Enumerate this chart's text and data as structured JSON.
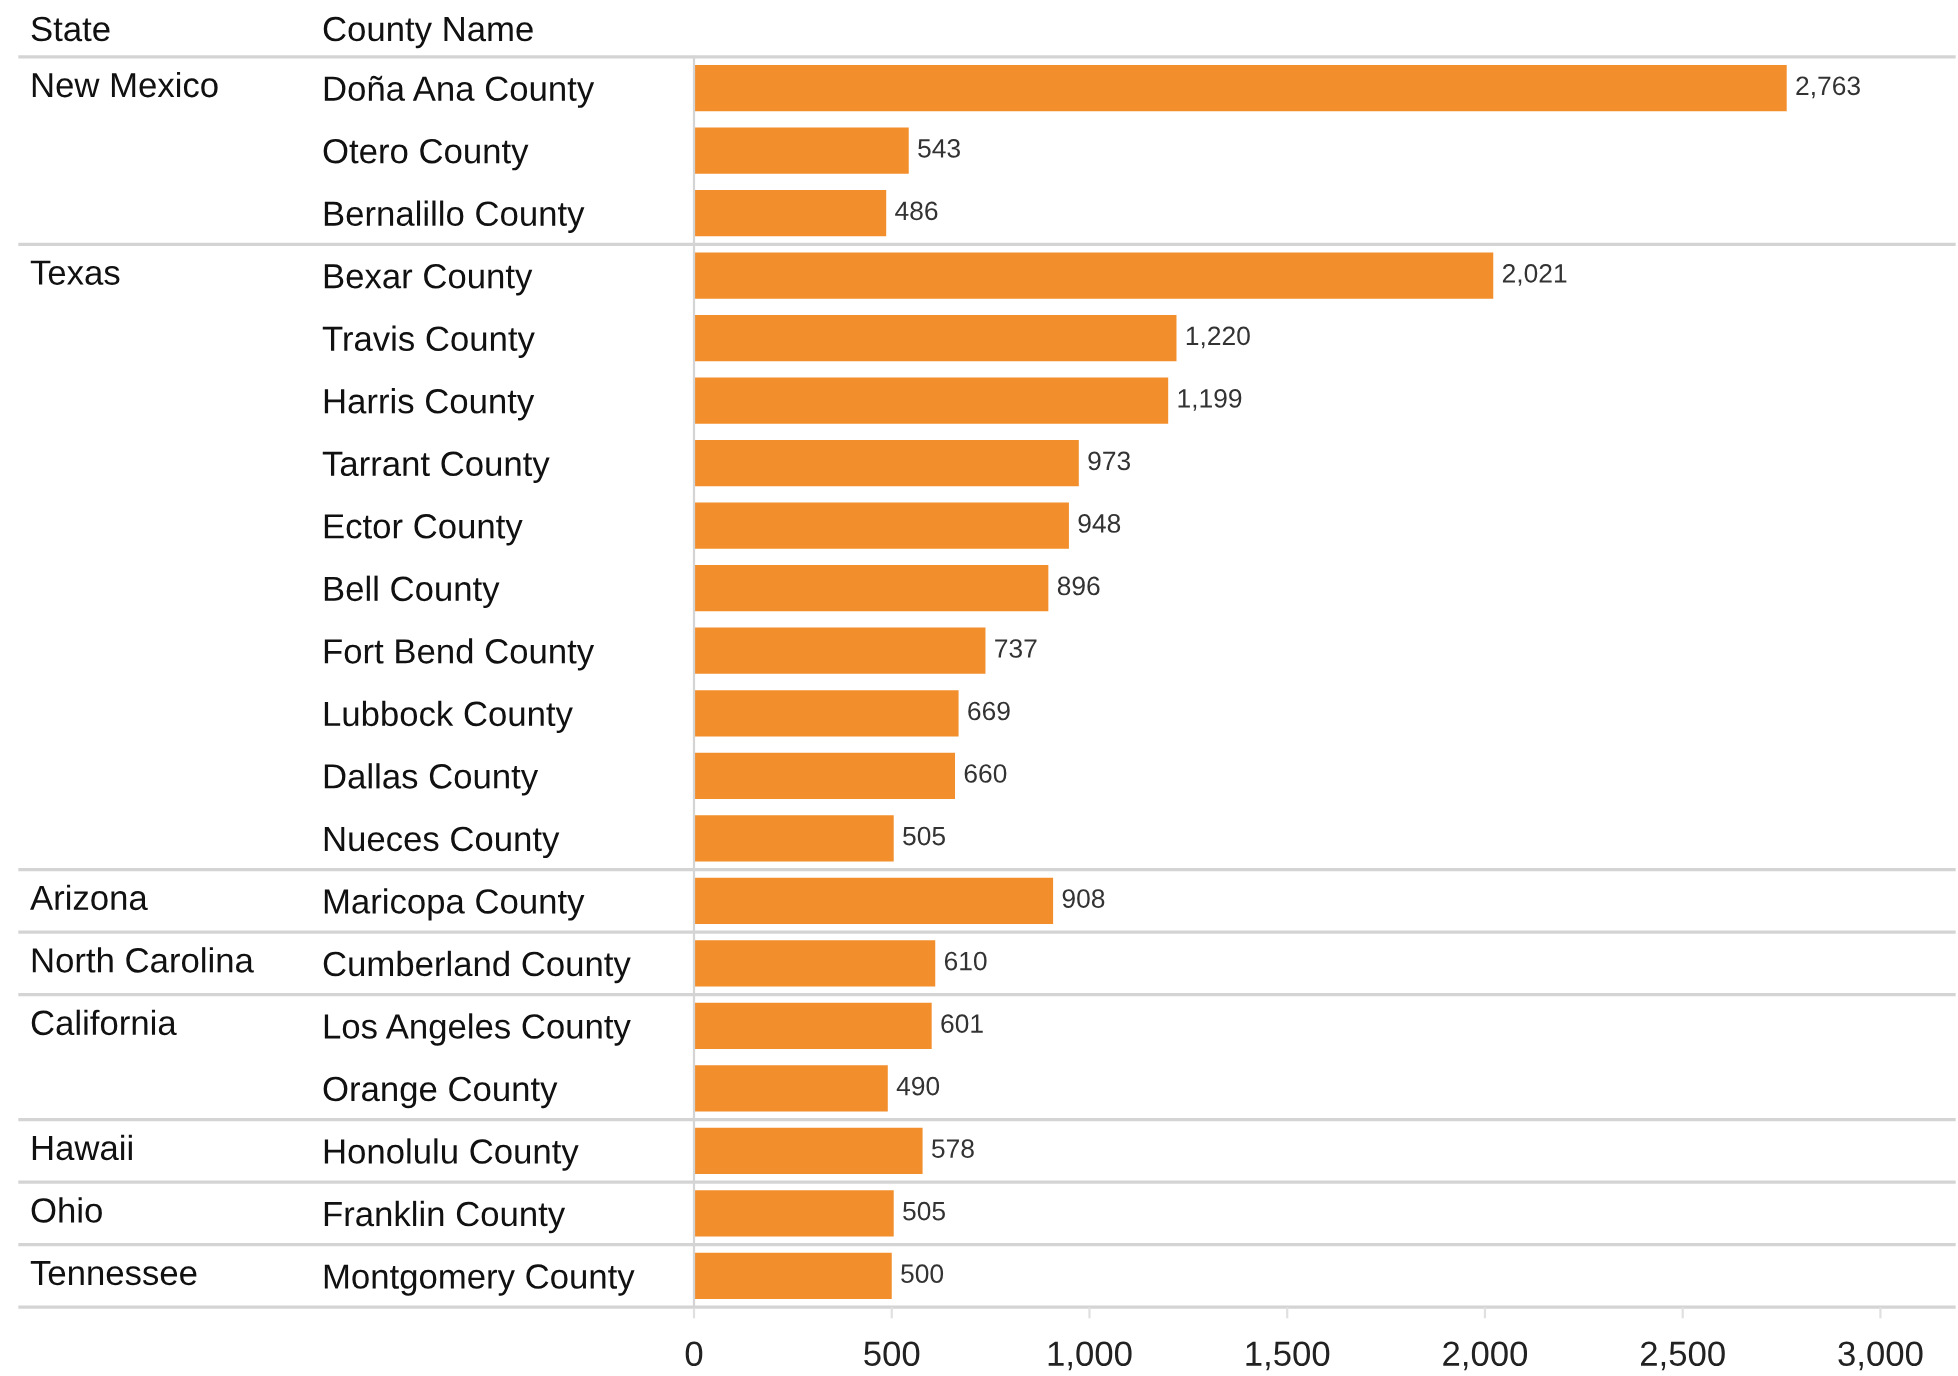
{
  "chart_data": {
    "type": "bar",
    "orientation": "horizontal",
    "ylabel": "County Name",
    "categories": [
      "Doña Ana County",
      "Otero County",
      "Bernalillo County",
      "Bexar County",
      "Travis County",
      "Harris County",
      "Tarrant County",
      "Ector County",
      "Bell County",
      "Fort Bend County",
      "Lubbock County",
      "Dallas County",
      "Nueces County",
      "Maricopa County",
      "Cumberland County",
      "Los Angeles County",
      "Orange County",
      "Honolulu County",
      "Franklin County",
      "Montgomery County"
    ],
    "y2_categories": [
      "New Mexico",
      null,
      null,
      "Texas",
      null,
      null,
      null,
      null,
      null,
      null,
      null,
      null,
      null,
      "Arizona",
      "North Carolina",
      "California",
      null,
      "Hawaii",
      "Ohio",
      "Tennessee"
    ],
    "values": [
      2763,
      543,
      486,
      2021,
      1220,
      1199,
      973,
      948,
      896,
      737,
      669,
      660,
      505,
      908,
      610,
      601,
      490,
      578,
      505,
      500
    ],
    "value_labels": [
      "2,763",
      "543",
      "486",
      "2,021",
      "1,220",
      "1,199",
      "973",
      "948",
      "896",
      "737",
      "669",
      "660",
      "505",
      "908",
      "610",
      "601",
      "490",
      "578",
      "505",
      "500"
    ],
    "color": "#f28e2b",
    "xlim": [
      0,
      3186
    ],
    "xticks": [
      0,
      500,
      {
        "value": 1000,
        "label": "1,000"
      },
      {
        "value": 1500,
        "label": "1,500"
      },
      {
        "value": 2000,
        "label": "2,000"
      },
      {
        "value": 2500,
        "label": "2,500"
      },
      {
        "value": 3000,
        "label": "3,000"
      }
    ],
    "annotations": [
      "State"
    ],
    "grid": false,
    "legend": false
  }
}
